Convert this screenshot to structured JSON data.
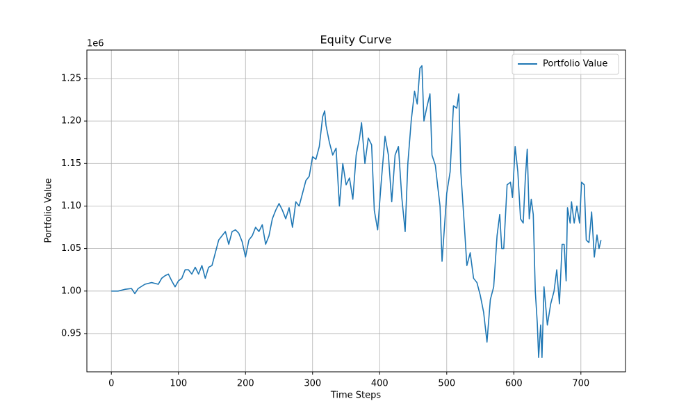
{
  "chart_data": {
    "type": "line",
    "title": "Equity Curve",
    "x_label": "Time Steps",
    "y_label": "Portfolio Value",
    "y_offset_label": "1e6",
    "x": [
      0,
      10,
      20,
      30,
      35,
      40,
      50,
      60,
      70,
      75,
      80,
      85,
      90,
      95,
      100,
      105,
      110,
      115,
      120,
      125,
      130,
      135,
      140,
      145,
      150,
      155,
      160,
      165,
      170,
      175,
      180,
      185,
      190,
      195,
      200,
      205,
      210,
      215,
      220,
      225,
      230,
      235,
      240,
      245,
      250,
      255,
      260,
      265,
      270,
      275,
      280,
      285,
      290,
      295,
      300,
      305,
      310,
      315,
      318,
      320,
      325,
      330,
      335,
      340,
      345,
      350,
      355,
      360,
      365,
      370,
      373,
      378,
      383,
      388,
      392,
      397,
      402,
      408,
      413,
      418,
      423,
      428,
      433,
      438,
      442,
      447,
      452,
      456,
      460,
      463,
      466,
      470,
      475,
      478,
      483,
      487,
      490,
      493,
      497,
      500,
      505,
      510,
      515,
      518,
      521,
      526,
      530,
      535,
      540,
      545,
      550,
      555,
      560,
      565,
      570,
      575,
      579,
      582,
      585,
      590,
      595,
      598,
      602,
      606,
      610,
      614,
      617,
      620,
      623,
      626,
      629,
      632,
      635,
      637,
      640,
      642,
      645,
      650,
      655,
      660,
      664,
      668,
      672,
      675,
      678,
      680,
      684,
      686,
      690,
      694,
      698,
      701,
      705,
      708,
      712,
      716,
      720,
      724,
      727,
      730
    ],
    "series": [
      {
        "name": "Portfolio Value",
        "color": "#1f77b4",
        "values": [
          1.0,
          1.0,
          1.002,
          1.003,
          0.997,
          1.003,
          1.008,
          1.01,
          1.008,
          1.015,
          1.018,
          1.02,
          1.012,
          1.005,
          1.012,
          1.015,
          1.025,
          1.025,
          1.02,
          1.028,
          1.02,
          1.03,
          1.015,
          1.028,
          1.03,
          1.045,
          1.06,
          1.065,
          1.07,
          1.055,
          1.07,
          1.072,
          1.068,
          1.058,
          1.04,
          1.06,
          1.065,
          1.075,
          1.07,
          1.078,
          1.055,
          1.065,
          1.085,
          1.095,
          1.103,
          1.095,
          1.085,
          1.098,
          1.075,
          1.105,
          1.1,
          1.115,
          1.13,
          1.135,
          1.158,
          1.155,
          1.17,
          1.205,
          1.212,
          1.195,
          1.175,
          1.16,
          1.168,
          1.1,
          1.15,
          1.125,
          1.133,
          1.108,
          1.16,
          1.18,
          1.198,
          1.15,
          1.18,
          1.172,
          1.095,
          1.072,
          1.125,
          1.182,
          1.16,
          1.105,
          1.16,
          1.17,
          1.11,
          1.07,
          1.15,
          1.2,
          1.235,
          1.22,
          1.262,
          1.265,
          1.2,
          1.215,
          1.232,
          1.16,
          1.148,
          1.12,
          1.1,
          1.035,
          1.08,
          1.115,
          1.14,
          1.218,
          1.215,
          1.232,
          1.14,
          1.08,
          1.03,
          1.045,
          1.015,
          1.01,
          0.995,
          0.975,
          0.94,
          0.99,
          1.005,
          1.065,
          1.09,
          1.05,
          1.05,
          1.125,
          1.128,
          1.11,
          1.17,
          1.14,
          1.085,
          1.08,
          1.13,
          1.167,
          1.085,
          1.108,
          1.09,
          1.0,
          0.962,
          0.922,
          0.96,
          0.922,
          1.005,
          0.96,
          0.985,
          1.0,
          1.025,
          0.985,
          1.055,
          1.055,
          1.012,
          1.098,
          1.08,
          1.105,
          1.08,
          1.1,
          1.08,
          1.128,
          1.125,
          1.06,
          1.057,
          1.093,
          1.04,
          1.066,
          1.05,
          1.06
        ]
      }
    ],
    "xlim": [
      -36.5,
      766.5
    ],
    "ylim": [
      0.905,
      1.2835
    ],
    "xticks": [
      0,
      100,
      200,
      300,
      400,
      500,
      600,
      700
    ],
    "yticks": [
      0.95,
      {
        "value": 1.0,
        "label": "1.00"
      },
      1.05,
      {
        "value": 1.1,
        "label": "1.10"
      },
      1.15,
      {
        "value": 1.2,
        "label": "1.20"
      },
      1.25
    ],
    "grid": true,
    "legend": "upper right"
  }
}
